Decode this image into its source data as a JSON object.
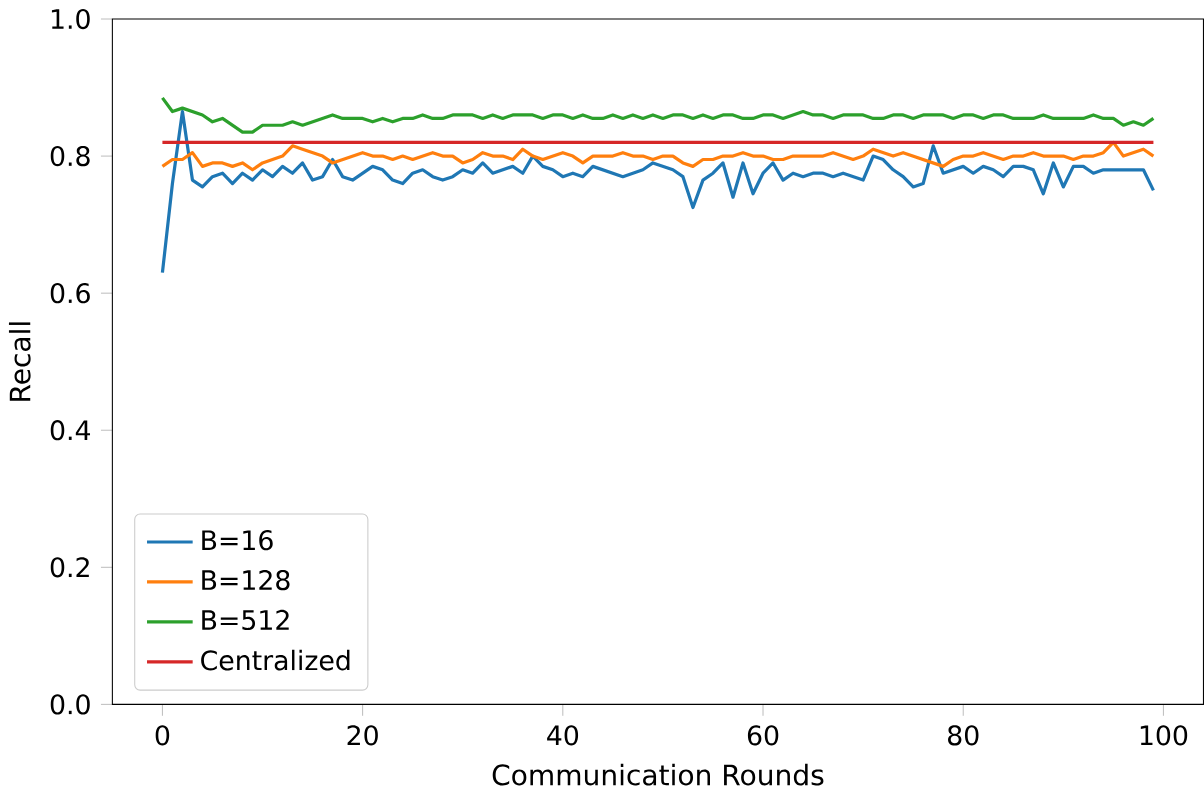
{
  "chart_data": {
    "type": "line",
    "xlabel": "Communication Rounds",
    "ylabel": "Recall",
    "x": [
      0,
      1,
      2,
      3,
      4,
      5,
      6,
      7,
      8,
      9,
      10,
      11,
      12,
      13,
      14,
      15,
      16,
      17,
      18,
      19,
      20,
      21,
      22,
      23,
      24,
      25,
      26,
      27,
      28,
      29,
      30,
      31,
      32,
      33,
      34,
      35,
      36,
      37,
      38,
      39,
      40,
      41,
      42,
      43,
      44,
      45,
      46,
      47,
      48,
      49,
      50,
      51,
      52,
      53,
      54,
      55,
      56,
      57,
      58,
      59,
      60,
      61,
      62,
      63,
      64,
      65,
      66,
      67,
      68,
      69,
      70,
      71,
      72,
      73,
      74,
      75,
      76,
      77,
      78,
      79,
      80,
      81,
      82,
      83,
      84,
      85,
      86,
      87,
      88,
      89,
      90,
      91,
      92,
      93,
      94,
      95,
      96,
      97,
      98,
      99
    ],
    "xlim": [
      -5,
      104
    ],
    "ylim": [
      0,
      1
    ],
    "xticks": [
      0,
      20,
      40,
      60,
      80,
      100
    ],
    "yticks": [
      {
        "value": 0,
        "label": "0.0"
      },
      0.2,
      0.4,
      0.6,
      0.8,
      {
        "value": 1,
        "label": "1.0"
      }
    ],
    "legend": "bottom left",
    "grid": false,
    "series": [
      {
        "name": "B=16",
        "color": "#1f77b4",
        "values": [
          0.63,
          0.76,
          0.865,
          0.765,
          0.755,
          0.77,
          0.775,
          0.76,
          0.775,
          0.765,
          0.78,
          0.77,
          0.785,
          0.775,
          0.79,
          0.765,
          0.77,
          0.795,
          0.77,
          0.765,
          0.775,
          0.785,
          0.78,
          0.765,
          0.76,
          0.775,
          0.78,
          0.77,
          0.765,
          0.77,
          0.78,
          0.775,
          0.79,
          0.775,
          0.78,
          0.785,
          0.775,
          0.8,
          0.785,
          0.78,
          0.77,
          0.775,
          0.77,
          0.785,
          0.78,
          0.775,
          0.77,
          0.775,
          0.78,
          0.79,
          0.785,
          0.78,
          0.77,
          0.725,
          0.765,
          0.775,
          0.79,
          0.74,
          0.79,
          0.745,
          0.775,
          0.79,
          0.765,
          0.775,
          0.77,
          0.775,
          0.775,
          0.77,
          0.775,
          0.77,
          0.765,
          0.8,
          0.795,
          0.78,
          0.77,
          0.755,
          0.76,
          0.815,
          0.775,
          0.78,
          0.785,
          0.775,
          0.785,
          0.78,
          0.77,
          0.785,
          0.785,
          0.78,
          0.745,
          0.79,
          0.755,
          0.785,
          0.785,
          0.775,
          0.78,
          0.78,
          0.78,
          0.78,
          0.78,
          0.75
        ]
      },
      {
        "name": "B=128",
        "color": "#ff7f0e",
        "values": [
          0.785,
          0.795,
          0.795,
          0.805,
          0.785,
          0.79,
          0.79,
          0.785,
          0.79,
          0.78,
          0.79,
          0.795,
          0.8,
          0.815,
          0.81,
          0.805,
          0.8,
          0.79,
          0.795,
          0.8,
          0.805,
          0.8,
          0.8,
          0.795,
          0.8,
          0.795,
          0.8,
          0.805,
          0.8,
          0.8,
          0.79,
          0.795,
          0.805,
          0.8,
          0.8,
          0.795,
          0.81,
          0.8,
          0.795,
          0.8,
          0.805,
          0.8,
          0.79,
          0.8,
          0.8,
          0.8,
          0.805,
          0.8,
          0.8,
          0.795,
          0.8,
          0.8,
          0.79,
          0.785,
          0.795,
          0.795,
          0.8,
          0.8,
          0.805,
          0.8,
          0.8,
          0.795,
          0.795,
          0.8,
          0.8,
          0.8,
          0.8,
          0.805,
          0.8,
          0.795,
          0.8,
          0.81,
          0.805,
          0.8,
          0.805,
          0.8,
          0.795,
          0.79,
          0.785,
          0.795,
          0.8,
          0.8,
          0.805,
          0.8,
          0.795,
          0.8,
          0.8,
          0.805,
          0.8,
          0.8,
          0.8,
          0.795,
          0.8,
          0.8,
          0.805,
          0.82,
          0.8,
          0.805,
          0.81,
          0.8
        ]
      },
      {
        "name": "B=512",
        "color": "#2ca02c",
        "values": [
          0.885,
          0.865,
          0.87,
          0.865,
          0.86,
          0.85,
          0.855,
          0.845,
          0.835,
          0.835,
          0.845,
          0.845,
          0.845,
          0.85,
          0.845,
          0.85,
          0.855,
          0.86,
          0.855,
          0.855,
          0.855,
          0.85,
          0.855,
          0.85,
          0.855,
          0.855,
          0.86,
          0.855,
          0.855,
          0.86,
          0.86,
          0.86,
          0.855,
          0.86,
          0.855,
          0.86,
          0.86,
          0.86,
          0.855,
          0.86,
          0.86,
          0.855,
          0.86,
          0.855,
          0.855,
          0.86,
          0.855,
          0.86,
          0.855,
          0.86,
          0.855,
          0.86,
          0.86,
          0.855,
          0.86,
          0.855,
          0.86,
          0.86,
          0.855,
          0.855,
          0.86,
          0.86,
          0.855,
          0.86,
          0.865,
          0.86,
          0.86,
          0.855,
          0.86,
          0.86,
          0.86,
          0.855,
          0.855,
          0.86,
          0.86,
          0.855,
          0.86,
          0.86,
          0.86,
          0.855,
          0.86,
          0.86,
          0.855,
          0.86,
          0.86,
          0.855,
          0.855,
          0.855,
          0.86,
          0.855,
          0.855,
          0.855,
          0.855,
          0.86,
          0.855,
          0.855,
          0.845,
          0.85,
          0.845,
          0.855
        ]
      },
      {
        "name": "Centralized",
        "color": "#d62728",
        "values": [
          0.82,
          0.82,
          0.82,
          0.82,
          0.82,
          0.82,
          0.82,
          0.82,
          0.82,
          0.82,
          0.82,
          0.82,
          0.82,
          0.82,
          0.82,
          0.82,
          0.82,
          0.82,
          0.82,
          0.82,
          0.82,
          0.82,
          0.82,
          0.82,
          0.82,
          0.82,
          0.82,
          0.82,
          0.82,
          0.82,
          0.82,
          0.82,
          0.82,
          0.82,
          0.82,
          0.82,
          0.82,
          0.82,
          0.82,
          0.82,
          0.82,
          0.82,
          0.82,
          0.82,
          0.82,
          0.82,
          0.82,
          0.82,
          0.82,
          0.82,
          0.82,
          0.82,
          0.82,
          0.82,
          0.82,
          0.82,
          0.82,
          0.82,
          0.82,
          0.82,
          0.82,
          0.82,
          0.82,
          0.82,
          0.82,
          0.82,
          0.82,
          0.82,
          0.82,
          0.82,
          0.82,
          0.82,
          0.82,
          0.82,
          0.82,
          0.82,
          0.82,
          0.82,
          0.82,
          0.82,
          0.82,
          0.82,
          0.82,
          0.82,
          0.82,
          0.82,
          0.82,
          0.82,
          0.82,
          0.82,
          0.82,
          0.82,
          0.82,
          0.82,
          0.82,
          0.82,
          0.82,
          0.82,
          0.82,
          0.82
        ]
      }
    ]
  }
}
